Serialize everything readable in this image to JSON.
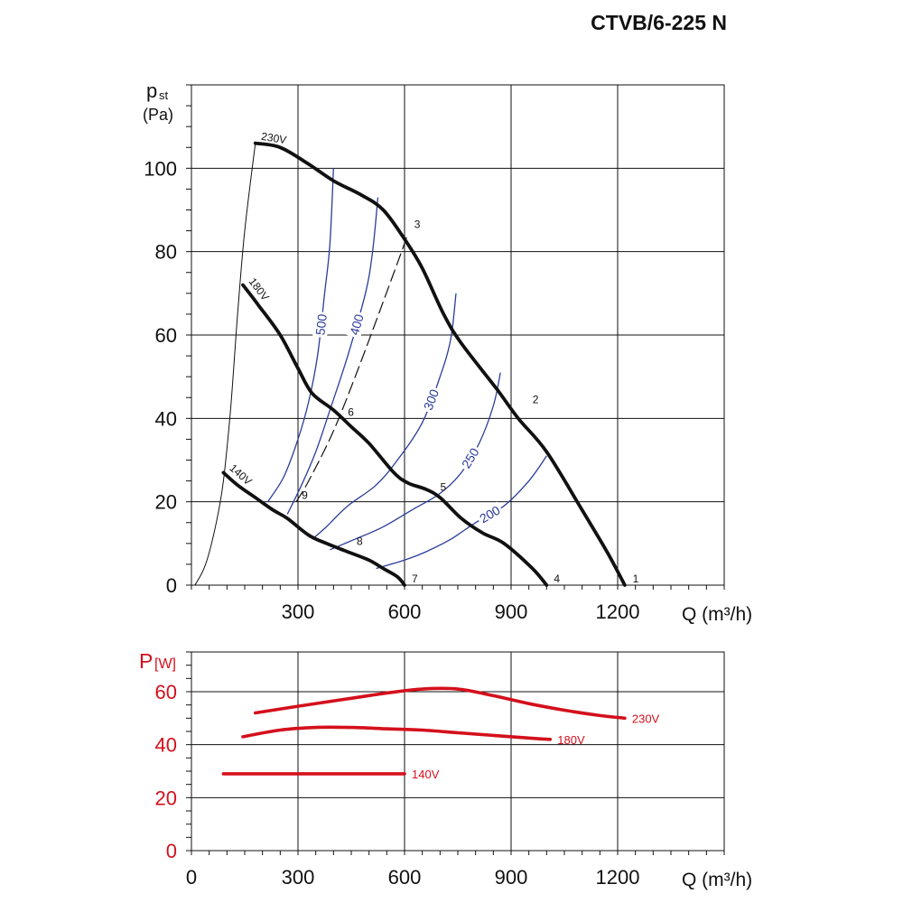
{
  "title": "CTVB/6-225 N",
  "colors": {
    "pressure_curve": "#111111",
    "iso_curve": "#2b3c9a",
    "power_curve": "#d4101c",
    "power_axis_text": "#d4101c",
    "grid": "#111111"
  },
  "chart_data": [
    {
      "type": "line",
      "ylabel_main": "p",
      "ylabel_sub": "st",
      "ylabel_unit": "(Pa)",
      "xlabel": "Q (m³/h)",
      "xlim": [
        0,
        1500
      ],
      "ylim": [
        0,
        120
      ],
      "x_ticks": [
        300,
        600,
        900,
        1200
      ],
      "y_ticks": [
        0,
        20,
        40,
        60,
        80,
        100
      ],
      "grid": true,
      "series": [
        {
          "name": "230V",
          "values": [
            [
              180,
              106
            ],
            [
              250,
              105
            ],
            [
              330,
              101
            ],
            [
              400,
              97
            ],
            [
              480,
              93.5
            ],
            [
              540,
              90
            ],
            [
              600,
              83
            ],
            [
              650,
              76
            ],
            [
              710,
              65
            ],
            [
              760,
              58
            ],
            [
              860,
              47
            ],
            [
              920,
              40
            ],
            [
              1000,
              32
            ],
            [
              1100,
              18
            ],
            [
              1170,
              8
            ],
            [
              1220,
              0
            ]
          ]
        },
        {
          "name": "180V",
          "values": [
            [
              145,
              72
            ],
            [
              190,
              67
            ],
            [
              250,
              60
            ],
            [
              300,
              52
            ],
            [
              340,
              46
            ],
            [
              400,
              42
            ],
            [
              450,
              38
            ],
            [
              500,
              34
            ],
            [
              570,
              27
            ],
            [
              610,
              24.5
            ],
            [
              660,
              23
            ],
            [
              700,
              21
            ],
            [
              760,
              16
            ],
            [
              820,
              12.5
            ],
            [
              880,
              10
            ],
            [
              960,
              4
            ],
            [
              1000,
              0
            ]
          ]
        },
        {
          "name": "140V",
          "values": [
            [
              90,
              27
            ],
            [
              130,
              24
            ],
            [
              180,
              21
            ],
            [
              230,
              18
            ],
            [
              270,
              16
            ],
            [
              330,
              12
            ],
            [
              380,
              10
            ],
            [
              440,
              8
            ],
            [
              500,
              6
            ],
            [
              540,
              4
            ],
            [
              580,
              2
            ],
            [
              600,
              0
            ]
          ]
        }
      ],
      "iso_curves": [
        {
          "name": "500",
          "values": [
            [
              215,
              20
            ],
            [
              260,
              26
            ],
            [
              300,
              35
            ],
            [
              330,
              44
            ],
            [
              355,
              55
            ],
            [
              375,
              70
            ],
            [
              390,
              82
            ],
            [
              400,
              100
            ]
          ]
        },
        {
          "name": "400",
          "values": [
            [
              270,
              17
            ],
            [
              310,
              24
            ],
            [
              350,
              32
            ],
            [
              390,
              42
            ],
            [
              440,
              55
            ],
            [
              490,
              70
            ],
            [
              510,
              80
            ],
            [
              525,
              93
            ]
          ]
        },
        {
          "name": "300",
          "values": [
            [
              340,
              11
            ],
            [
              380,
              14
            ],
            [
              440,
              19
            ],
            [
              520,
              24
            ],
            [
              580,
              30
            ],
            [
              650,
              39
            ],
            [
              700,
              50
            ],
            [
              730,
              59
            ],
            [
              745,
              70
            ]
          ]
        },
        {
          "name": "250",
          "values": [
            [
              390,
              8.5
            ],
            [
              460,
              11
            ],
            [
              540,
              14
            ],
            [
              620,
              18
            ],
            [
              700,
              22
            ],
            [
              760,
              27
            ],
            [
              810,
              34
            ],
            [
              850,
              43
            ],
            [
              870,
              51
            ]
          ]
        },
        {
          "name": "200",
          "values": [
            [
              520,
              4
            ],
            [
              600,
              6
            ],
            [
              660,
              8
            ],
            [
              730,
              11
            ],
            [
              800,
              15
            ],
            [
              880,
              19
            ],
            [
              950,
              25
            ],
            [
              1000,
              31
            ]
          ]
        }
      ],
      "system_line": {
        "values": [
          [
            295,
            20
          ],
          [
            330,
            25
          ],
          [
            400,
            37
          ],
          [
            470,
            52
          ],
          [
            540,
            68
          ],
          [
            600,
            82
          ],
          [
            605,
            84
          ]
        ]
      },
      "left_envelope": {
        "values": [
          [
            10,
            0
          ],
          [
            40,
            5
          ],
          [
            70,
            15
          ],
          [
            90,
            25
          ],
          [
            110,
            42
          ],
          [
            130,
            65
          ],
          [
            150,
            85
          ],
          [
            180,
            106
          ]
        ]
      },
      "point_labels": [
        {
          "text": "1",
          "x": 1222,
          "y": 0
        },
        {
          "text": "2",
          "x": 940,
          "y": 43
        },
        {
          "text": "3",
          "x": 607,
          "y": 85
        },
        {
          "text": "4",
          "x": 1000,
          "y": 0
        },
        {
          "text": "5",
          "x": 680,
          "y": 22
        },
        {
          "text": "6",
          "x": 420,
          "y": 40
        },
        {
          "text": "7",
          "x": 600,
          "y": 0
        },
        {
          "text": "8",
          "x": 445,
          "y": 9
        },
        {
          "text": "9",
          "x": 290,
          "y": 20
        }
      ]
    },
    {
      "type": "line",
      "ylabel_main": "P",
      "ylabel_unit": "[W]",
      "xlabel": "Q (m³/h)",
      "xlim": [
        0,
        1500
      ],
      "ylim": [
        0,
        75
      ],
      "x_ticks": [
        0,
        300,
        600,
        900,
        1200
      ],
      "y_ticks": [
        0,
        20,
        40,
        60
      ],
      "grid": true,
      "series": [
        {
          "name": "230V",
          "values": [
            [
              180,
              52
            ],
            [
              300,
              54.5
            ],
            [
              450,
              57.5
            ],
            [
              550,
              59.5
            ],
            [
              650,
              61
            ],
            [
              750,
              61
            ],
            [
              850,
              58.5
            ],
            [
              950,
              55.5
            ],
            [
              1050,
              53
            ],
            [
              1150,
              51
            ],
            [
              1220,
              50
            ]
          ]
        },
        {
          "name": "180V",
          "values": [
            [
              145,
              43
            ],
            [
              250,
              45.5
            ],
            [
              350,
              46.5
            ],
            [
              450,
              46.5
            ],
            [
              550,
              46
            ],
            [
              650,
              45.5
            ],
            [
              750,
              44.5
            ],
            [
              850,
              43.5
            ],
            [
              950,
              42.5
            ],
            [
              1010,
              42
            ]
          ]
        },
        {
          "name": "140V",
          "values": [
            [
              90,
              29
            ],
            [
              200,
              29
            ],
            [
              300,
              29
            ],
            [
              400,
              29
            ],
            [
              500,
              29
            ],
            [
              600,
              29
            ]
          ]
        }
      ]
    }
  ]
}
